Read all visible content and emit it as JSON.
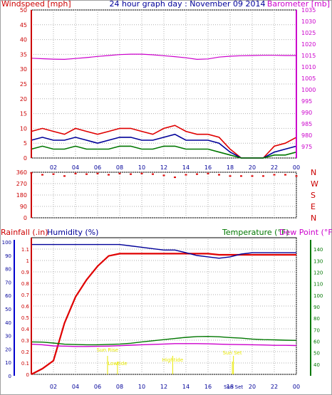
{
  "chart_data": [
    {
      "type": "line",
      "title": "24 hour graph day : November 09 2014",
      "left_axis_label": "Windspeed [mph]",
      "right_axis_label": "Barometer [mb]",
      "left_ylim": [
        0,
        50
      ],
      "left_ticks": [
        "0",
        "5",
        "10",
        "15",
        "20",
        "25",
        "30",
        "35",
        "40",
        "45",
        "50"
      ],
      "right_ylim": [
        970,
        1035
      ],
      "right_ticks": [
        "975",
        "980",
        "985",
        "990",
        "995",
        "1000",
        "1005",
        "1010",
        "1015",
        "1020",
        "1025",
        "1030",
        "1035"
      ],
      "x_ticks": [
        "02",
        "04",
        "06",
        "08",
        "10",
        "12",
        "14",
        "16",
        "18",
        "20",
        "22",
        "00"
      ],
      "grid": true,
      "colors": {
        "windspeed": "#e00000",
        "gust_avg": "#000099",
        "wind_avg": "#007700",
        "barometer": "#cc00cc",
        "axis_left": "#cc0000",
        "axis_right": "#cc00cc",
        "title": "#000099"
      },
      "x": [
        0,
        1,
        2,
        3,
        4,
        5,
        6,
        7,
        8,
        9,
        10,
        11,
        12,
        13,
        14,
        15,
        16,
        17,
        18,
        19,
        20,
        21,
        22,
        23,
        24
      ],
      "series": [
        {
          "key": "windspeed",
          "axis": "left",
          "values": [
            9,
            10,
            9,
            8,
            10,
            9,
            8,
            9,
            10,
            10,
            9,
            8,
            10,
            11,
            9,
            8,
            8,
            7,
            3,
            0,
            0,
            0,
            4,
            5,
            7
          ]
        },
        {
          "key": "gust_avg",
          "axis": "left",
          "values": [
            6,
            7,
            6,
            6,
            7,
            6,
            5,
            6,
            7,
            7,
            6,
            6,
            7,
            8,
            6,
            6,
            6,
            5,
            2,
            0,
            0,
            0,
            2,
            3,
            4
          ]
        },
        {
          "key": "wind_avg",
          "axis": "left",
          "values": [
            3,
            4,
            3,
            3,
            4,
            3,
            3,
            3,
            4,
            4,
            3,
            3,
            4,
            4,
            3,
            3,
            3,
            2,
            1,
            0,
            0,
            0,
            1,
            1,
            2
          ]
        },
        {
          "key": "barometer",
          "axis": "right",
          "values": [
            1013.8,
            1013.6,
            1013.4,
            1013.3,
            1013.7,
            1014.1,
            1014.6,
            1015.0,
            1015.4,
            1015.6,
            1015.6,
            1015.3,
            1014.9,
            1014.5,
            1014.0,
            1013.3,
            1013.5,
            1014.3,
            1014.7,
            1014.9,
            1015.0,
            1015.1,
            1015.1,
            1015.0,
            1015.0
          ]
        }
      ]
    },
    {
      "type": "scatter",
      "right_labels": [
        "N",
        "W",
        "S",
        "E",
        "N"
      ],
      "left_ylim": [
        0,
        360
      ],
      "left_ticks": [
        "0",
        "90",
        "180",
        "270",
        "360"
      ],
      "x_ticks": [
        "02",
        "04",
        "06",
        "08",
        "10",
        "12",
        "14",
        "16",
        "18",
        "20",
        "22",
        "00"
      ],
      "color": "#e00000",
      "x": [
        0,
        1,
        2,
        3,
        4,
        5,
        6,
        7,
        8,
        9,
        10,
        11,
        12,
        13,
        14,
        15,
        16,
        17,
        18,
        19,
        20,
        21,
        22,
        23,
        24
      ],
      "values": [
        355,
        340,
        345,
        330,
        350,
        345,
        350,
        340,
        350,
        345,
        350,
        345,
        335,
        320,
        340,
        345,
        350,
        340,
        330,
        330,
        330,
        330,
        340,
        340,
        330
      ]
    },
    {
      "type": "line",
      "rain_label": "Rainfall (.in)",
      "humidity_label": "Humidity (%)",
      "temperature_label": "Temperature (°F)",
      "dewpoint_label": "Dew Point (°F)",
      "rain_ylim": [
        0,
        1.2
      ],
      "rain_ticks": [
        "0",
        "0.1",
        "0.2",
        "0.3",
        "0.4",
        "0.5",
        "0.6",
        "0.7",
        "0.8",
        "0.9",
        "1",
        "1.1"
      ],
      "humidity_ylim": [
        0,
        100
      ],
      "humidity_ticks": [
        "0",
        "10",
        "20",
        "30",
        "40",
        "50",
        "60",
        "70",
        "80",
        "90",
        "100"
      ],
      "temp_ylim": [
        30,
        150
      ],
      "temp_ticks": [
        "40",
        "50",
        "60",
        "70",
        "80",
        "90",
        "100",
        "110",
        "120",
        "130",
        "140"
      ],
      "x_ticks": [
        "02",
        "04",
        "06",
        "08",
        "10",
        "12",
        "14",
        "16",
        "18",
        "20",
        "22",
        "00"
      ],
      "colors": {
        "rain": "#e00000",
        "humidity": "#000099",
        "temperature": "#007700",
        "dewpoint": "#cc00cc",
        "events": "#e8e800"
      },
      "annotations": [
        {
          "label": "Sun Rise",
          "x": 6.9
        },
        {
          "label": "Lowtide",
          "x": 7.8
        },
        {
          "label": "Hightide",
          "x": 12.8
        },
        {
          "label": "Sun Set",
          "x": 18.2
        },
        {
          "label": "Sun Set",
          "x": 18.3
        }
      ],
      "x": [
        0,
        1,
        2,
        3,
        4,
        5,
        6,
        7,
        8,
        9,
        10,
        11,
        12,
        13,
        14,
        15,
        16,
        17,
        18,
        19,
        20,
        21,
        22,
        23,
        24
      ],
      "series": [
        {
          "key": "rain",
          "values": [
            0.0,
            0.05,
            0.12,
            0.45,
            0.68,
            0.83,
            0.95,
            1.04,
            1.06,
            1.06,
            1.06,
            1.06,
            1.06,
            1.06,
            1.06,
            1.06,
            1.06,
            1.05,
            1.05,
            1.05,
            1.05,
            1.05,
            1.05,
            1.05,
            1.05
          ]
        },
        {
          "key": "humidity",
          "values": [
            95,
            95,
            95,
            95,
            95,
            95,
            95,
            95,
            95,
            94,
            93,
            92,
            91,
            91,
            89,
            87,
            86,
            85,
            86,
            88,
            89,
            89,
            89,
            89,
            89
          ]
        },
        {
          "key": "temperature",
          "values": [
            58.5,
            58.3,
            57.5,
            56.5,
            56.2,
            56.0,
            56.0,
            56.3,
            56.6,
            57.3,
            58.5,
            59.5,
            60.5,
            61.5,
            62.5,
            63.2,
            63.3,
            63.0,
            62.3,
            61.8,
            61.0,
            60.5,
            60.3,
            60.0,
            59.8
          ]
        },
        {
          "key": "dewpoint",
          "values": [
            56.5,
            56.0,
            55.0,
            54.8,
            54.5,
            54.5,
            54.6,
            54.8,
            55.2,
            55.6,
            56.0,
            56.3,
            56.6,
            57.0,
            57.0,
            57.0,
            56.8,
            56.5,
            56.3,
            56.1,
            56.0,
            55.8,
            55.5,
            55.5,
            55.3
          ]
        }
      ]
    }
  ]
}
